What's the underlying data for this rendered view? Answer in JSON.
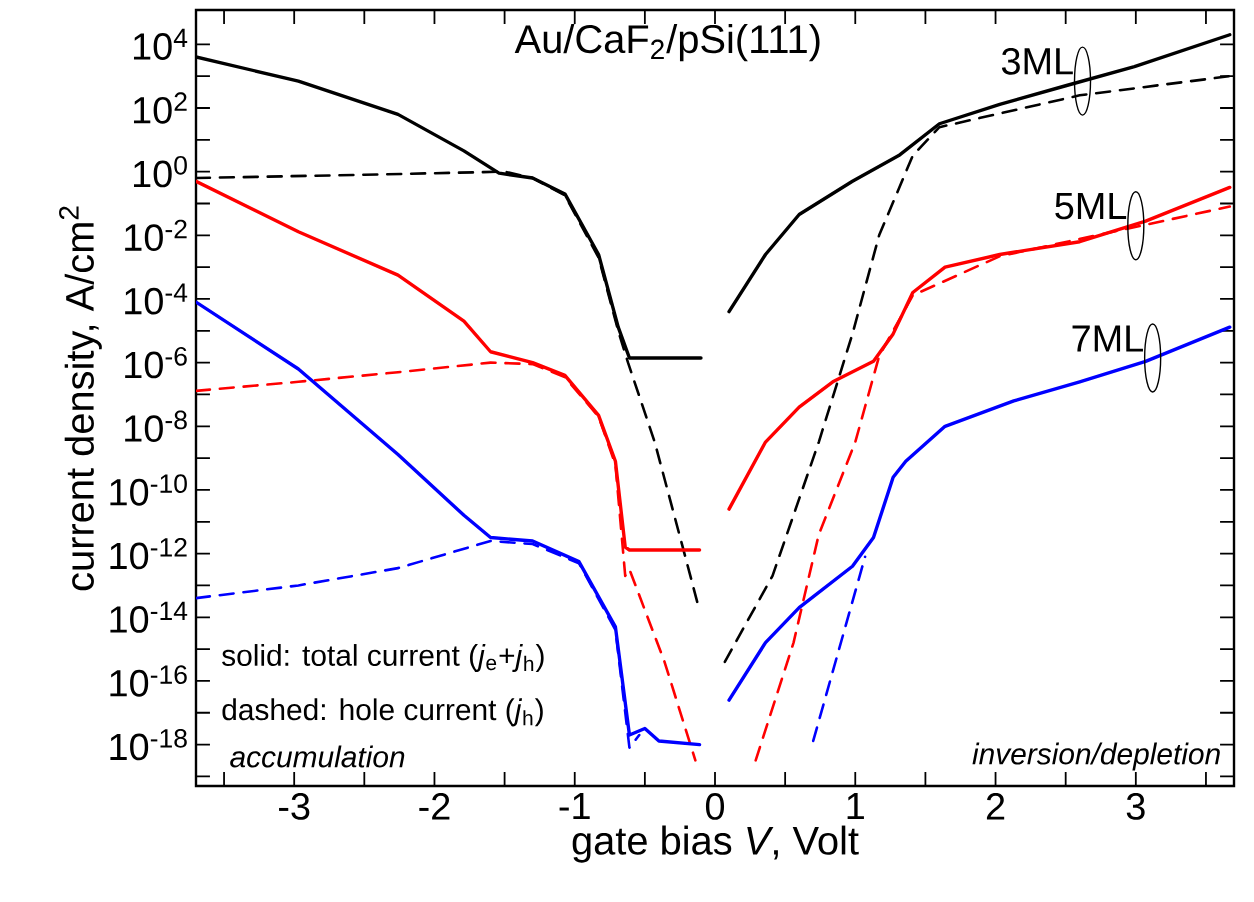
{
  "chart_data": {
    "type": "line",
    "xlabel": "gate bias *V*, Volt",
    "ylabel": "current density, A/cm$^{2}$",
    "log": "y",
    "grid": false,
    "xlim": [
      -3.7,
      3.7
    ],
    "ylim": [
      5e-20,
      120000.0
    ],
    "xticks": [
      {
        "value": -3.5,
        "label": null
      },
      -3,
      {
        "value": -2.5,
        "label": null
      },
      -2,
      {
        "value": -1.5,
        "label": null
      },
      -1,
      {
        "value": -0.5,
        "label": null
      },
      0,
      {
        "value": 0.5,
        "label": null
      },
      1,
      {
        "value": 1.5,
        "label": null
      },
      2,
      {
        "value": 2.5,
        "label": null
      },
      3,
      {
        "value": 3.5,
        "label": null
      }
    ],
    "yticks": [
      {
        "value": 10000.0,
        "label": "10$^{4}$"
      },
      {
        "value": 1000.0,
        "label": null
      },
      {
        "value": 100.0,
        "label": "10$^{2}$"
      },
      {
        "value": 10.0,
        "label": null
      },
      {
        "value": 1,
        "label": "10$^{0}$"
      },
      {
        "value": 0.1,
        "label": null
      },
      {
        "value": 0.01,
        "label": "10$^{-2}$"
      },
      {
        "value": 0.001,
        "label": null
      },
      {
        "value": 0.0001,
        "label": "10$^{-4}$"
      },
      {
        "value": 1e-05,
        "label": null
      },
      {
        "value": 1e-06,
        "label": "10$^{-6}$"
      },
      {
        "value": 1e-07,
        "label": null
      },
      {
        "value": 1e-08,
        "label": "10$^{-8}$"
      },
      {
        "value": 1e-09,
        "label": null
      },
      {
        "value": 1e-10,
        "label": "10$^{-10}$"
      },
      {
        "value": 1e-11,
        "label": null
      },
      {
        "value": 1e-12,
        "label": "10$^{-12}$"
      },
      {
        "value": 1e-13,
        "label": null
      },
      {
        "value": 1e-14,
        "label": "10$^{-14}$"
      },
      {
        "value": 1e-15,
        "label": null
      },
      {
        "value": 1e-16,
        "label": "10$^{-16}$"
      },
      {
        "value": 1e-17,
        "label": null
      },
      {
        "value": 1e-18,
        "label": "10$^{-18}$"
      },
      {
        "value": 1e-19,
        "label": null
      }
    ],
    "annotations": [
      "Au/CaF$_{2}$/pSi(111)",
      "solid: total current (*j*$_{e}$+*j*$_{h}$)",
      "dashed: hole current (*j*$_{h}$)",
      "accumulation",
      "inversion/depletion",
      {
        "text": "3ML",
        "x": 2.62,
        "y": 700.0
      },
      {
        "text": "5ML",
        "x": 3.0,
        "y": 0.02
      },
      {
        "text": "7ML",
        "x": 3.12,
        "y": 1.4e-06
      }
    ],
    "series": [
      {
        "color": "#000000",
        "line_style": "solid",
        "x": [
          -3.7,
          -2.97,
          -2.26,
          -1.79,
          -1.54,
          -1.3,
          -1.07,
          -0.83,
          -0.69,
          -0.61,
          -0.1,
          null,
          0.1,
          0.36,
          0.6,
          0.98,
          1.31,
          1.6,
          2.03,
          2.5,
          2.99,
          3.67
        ],
        "values": [
          4000.0,
          700.0,
          63,
          4.5,
          0.9,
          0.63,
          0.2,
          0.0025,
          1.3e-05,
          1.4e-06,
          1.4e-06,
          null,
          4e-05,
          0.0025,
          0.045,
          0.5,
          3.2,
          32,
          130.0,
          500.0,
          2000.0,
          20000.0
        ]
      },
      {
        "color": "#000000",
        "line_style": "dashed",
        "x": [
          -3.7,
          -2.5,
          -1.5,
          -1.3,
          -1.07,
          -0.83,
          -0.69,
          -0.62,
          -0.43,
          -0.23,
          -0.11,
          null,
          0.07,
          0.41,
          0.74,
          0.98,
          1.17,
          1.41,
          1.6,
          2.6,
          3.67
        ],
        "values": [
          0.63,
          0.8,
          1,
          0.63,
          0.18,
          0.002,
          1e-05,
          1e-06,
          3.2e-09,
          1.6e-12,
          1.6e-14,
          null,
          4e-16,
          2e-13,
          3.2e-09,
          8e-06,
          0.01,
          3.2,
          25,
          250.0,
          1000.0
        ]
      },
      {
        "color": "#ff0000",
        "line_style": "solid",
        "x": [
          -3.7,
          -2.97,
          -2.26,
          -1.79,
          -1.6,
          -1.3,
          -1.07,
          -0.83,
          -0.71,
          -0.64,
          -0.61,
          -0.11,
          null,
          0.1,
          0.36,
          0.6,
          0.84,
          1.13,
          1.27,
          1.41,
          1.64,
          2.03,
          2.6,
          3.07,
          3.67
        ],
        "values": [
          0.5,
          0.013,
          0.00056,
          2e-05,
          2.2e-06,
          1e-06,
          4e-07,
          2.2e-08,
          8e-10,
          1.6e-12,
          1.3e-12,
          1.3e-12,
          null,
          2.5e-11,
          3.2e-09,
          4e-08,
          2.5e-07,
          1.1e-06,
          8e-06,
          0.00016,
          0.001,
          0.0025,
          0.0063,
          0.028,
          0.32
        ]
      },
      {
        "color": "#ff0000",
        "line_style": "dashed",
        "x": [
          -3.7,
          -2.97,
          -2.26,
          -1.6,
          -1.3,
          -1.07,
          -0.83,
          -0.71,
          -0.64,
          -0.61,
          -0.36,
          -0.14,
          null,
          0.29,
          0.56,
          0.74,
          1.0,
          1.17,
          1.41,
          2.03,
          3.67
        ],
        "values": [
          1.3e-07,
          2.5e-07,
          5e-07,
          1e-06,
          9e-07,
          3.5e-07,
          2e-08,
          6.3e-10,
          2e-13,
          3.2e-13,
          4e-16,
          3.2e-19,
          null,
          3.2e-19,
          1.6e-15,
          4e-12,
          3.2e-09,
          1.6e-06,
          0.00013,
          0.0022,
          0.08
        ]
      },
      {
        "color": "#0000ff",
        "line_style": "solid",
        "x": [
          -3.7,
          -2.97,
          -2.26,
          -1.79,
          -1.6,
          -1.3,
          -0.97,
          -0.71,
          -0.61,
          -0.5,
          -0.4,
          -0.11,
          null,
          0.1,
          0.36,
          0.6,
          0.98,
          1.13,
          1.27,
          1.36,
          1.64,
          2.13,
          2.6,
          3.07,
          3.67
        ],
        "values": [
          8e-05,
          6.3e-07,
          1.3e-09,
          1.6e-11,
          3.2e-12,
          2.5e-12,
          5.6e-13,
          5e-15,
          2e-18,
          3.2e-18,
          1.3e-18,
          1e-18,
          null,
          2.5e-17,
          1.6e-15,
          2e-14,
          4e-13,
          3.2e-12,
          2.5e-10,
          8e-10,
          1e-08,
          6.3e-08,
          2.5e-07,
          1.1e-06,
          1.3e-05
        ]
      },
      {
        "color": "#0000ff",
        "line_style": "dashed",
        "x": [
          -3.7,
          -2.97,
          -2.26,
          -1.6,
          -1.3,
          -0.97,
          -0.71,
          -0.61,
          -0.54,
          null,
          0.7,
          1.07
        ],
        "values": [
          4e-14,
          1e-13,
          3.5e-13,
          2.5e-12,
          2e-12,
          5e-13,
          4e-15,
          8e-19,
          2e-18,
          null,
          1.3e-18,
          8e-13
        ]
      }
    ]
  }
}
